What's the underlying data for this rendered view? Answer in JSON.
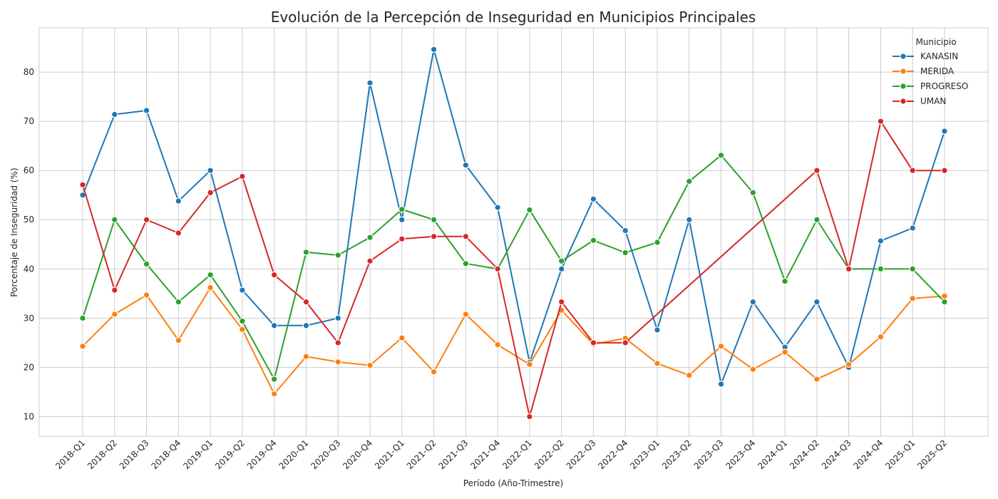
{
  "chart_data": {
    "type": "line",
    "title": "Evolución de la Percepción de Inseguridad en Municipios Principales",
    "xlabel": "Período (Año-Trimestre)",
    "ylabel": "Porcentaje de Inseguridad (%)",
    "ylim": [
      6,
      89
    ],
    "yticks": [
      10,
      20,
      30,
      40,
      50,
      60,
      70,
      80
    ],
    "grid": true,
    "legend_title": "Municipio",
    "legend_position": "top-right",
    "categories": [
      "2018-Q1",
      "2018-Q2",
      "2018-Q3",
      "2018-Q4",
      "2019-Q1",
      "2019-Q2",
      "2019-Q4",
      "2020-Q1",
      "2020-Q3",
      "2020-Q4",
      "2021-Q1",
      "2021-Q2",
      "2021-Q3",
      "2021-Q4",
      "2022-Q1",
      "2022-Q2",
      "2022-Q3",
      "2022-Q4",
      "2023-Q1",
      "2023-Q2",
      "2023-Q3",
      "2023-Q4",
      "2024-Q1",
      "2024-Q2",
      "2024-Q3",
      "2024-Q4",
      "2025-Q1",
      "2025-Q2"
    ],
    "series": [
      {
        "name": "KANASIN",
        "color": "#1f77b4",
        "values": [
          55,
          71.4,
          72.2,
          53.8,
          60,
          35.7,
          28.5,
          28.5,
          30,
          77.8,
          50,
          84.6,
          61.1,
          52.5,
          21,
          40,
          54.2,
          47.8,
          27.6,
          50,
          16.6,
          33.3,
          24.1,
          33.3,
          20,
          45.7,
          48.3,
          68
        ]
      },
      {
        "name": "MERIDA",
        "color": "#ff7f0e",
        "values": [
          24.3,
          30.8,
          34.7,
          25.5,
          36.2,
          27.7,
          14.6,
          22.2,
          21.1,
          20.4,
          26,
          19.1,
          30.8,
          24.6,
          20.6,
          31.6,
          24.7,
          25.9,
          20.8,
          18.4,
          24.3,
          19.6,
          23.1,
          17.6,
          20.6,
          26.2,
          34,
          34.5
        ]
      },
      {
        "name": "PROGRESO",
        "color": "#2ca02c",
        "values": [
          30,
          50,
          41,
          33.3,
          38.8,
          29.4,
          17.6,
          43.4,
          42.8,
          46.4,
          52.1,
          50,
          41.1,
          40,
          52,
          41.6,
          45.8,
          43.3,
          45.4,
          57.8,
          63.1,
          55.5,
          37.5,
          50,
          40,
          40,
          40,
          33.3
        ]
      },
      {
        "name": "UMAN",
        "color": "#d62728",
        "values": [
          57.1,
          35.7,
          50,
          47.3,
          55.5,
          58.8,
          38.8,
          33.3,
          25,
          41.6,
          46.1,
          46.6,
          46.6,
          40,
          10,
          33.3,
          25,
          25,
          null,
          null,
          null,
          null,
          null,
          60,
          40,
          70,
          60,
          60
        ]
      }
    ]
  }
}
